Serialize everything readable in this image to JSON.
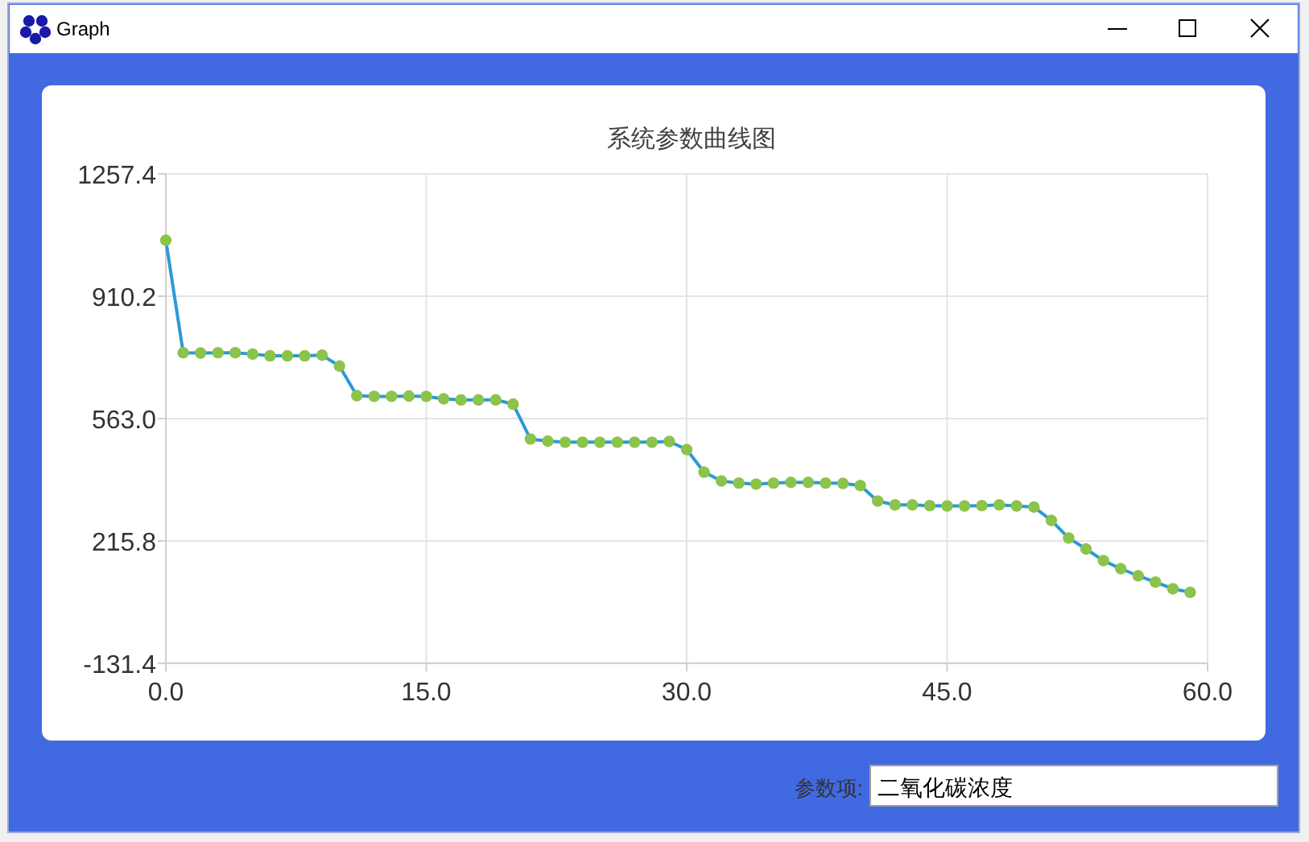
{
  "chart_data": {
    "type": "line",
    "title": "系统参数曲线图",
    "annotations": [
      "Graph",
      "参数项:",
      "二氧化碳浓度"
    ],
    "x": [
      0,
      1,
      2,
      3,
      4,
      5,
      6,
      7,
      8,
      9,
      10,
      11,
      12,
      13,
      14,
      15,
      16,
      17,
      18,
      19,
      20,
      21,
      22,
      23,
      24,
      25,
      26,
      27,
      28,
      29,
      30,
      31,
      32,
      33,
      34,
      35,
      36,
      37,
      38,
      39,
      40,
      41,
      42,
      43,
      44,
      45,
      46,
      47,
      48,
      49,
      50,
      51,
      52,
      53,
      54,
      55,
      56,
      57,
      58,
      59
    ],
    "series": [
      {
        "color": "#2b9ad6",
        "values": [
          1069,
          750,
          749,
          750,
          750,
          746,
          741,
          741,
          741,
          743,
          712,
          628,
          626,
          626,
          627,
          626,
          619,
          616,
          616,
          616,
          604,
          505,
          499,
          496,
          496,
          496,
          496,
          496,
          496,
          498,
          475,
          411,
          386,
          380,
          377,
          380,
          382,
          382,
          380,
          379,
          373,
          329,
          318,
          318,
          316,
          315,
          315,
          316,
          318,
          315,
          312,
          274,
          224,
          193,
          160,
          137,
          117,
          99,
          80,
          70
        ],
        "colors": [
          "#8cc34b",
          "#8cc34b",
          "#8cc34b",
          "#8cc34b",
          "#8cc34b",
          "#8cc34b",
          "#8cc34b",
          "#8cc34b",
          "#8cc34b",
          "#8cc34b",
          "#8cc34b",
          "#8cc34b",
          "#8cc34b",
          "#8cc34b",
          "#8cc34b",
          "#8cc34b",
          "#8cc34b",
          "#8cc34b",
          "#8cc34b",
          "#8cc34b",
          "#8cc34b",
          "#8cc34b",
          "#8cc34b",
          "#8cc34b",
          "#8cc34b",
          "#8cc34b",
          "#8cc34b",
          "#8cc34b",
          "#8cc34b",
          "#8cc34b",
          "#8cc34b",
          "#8cc34b",
          "#8cc34b",
          "#8cc34b",
          "#8cc34b",
          "#8cc34b",
          "#8cc34b",
          "#8cc34b",
          "#8cc34b",
          "#8cc34b",
          "#8cc34b",
          "#8cc34b",
          "#8cc34b",
          "#8cc34b",
          "#8cc34b",
          "#8cc34b",
          "#8cc34b",
          "#8cc34b",
          "#8cc34b",
          "#8cc34b",
          "#8cc34b",
          "#8cc34b",
          "#8cc34b",
          "#8cc34b",
          "#8cc34b",
          "#8cc34b",
          "#8cc34b",
          "#8cc34b",
          "#8cc34b",
          "#8cc34b"
        ]
      }
    ],
    "xlim": [
      0,
      60
    ],
    "ylim": [
      -131.4,
      1257.4
    ],
    "xticks": [
      {
        "value": 0,
        "label": "0.0"
      },
      {
        "value": 15,
        "label": "15.0"
      },
      {
        "value": 30,
        "label": "30.0"
      },
      {
        "value": 45,
        "label": "45.0"
      },
      {
        "value": 60,
        "label": "60.0"
      }
    ],
    "yticks": [
      -131.4,
      215.8,
      {
        "value": 563,
        "label": "563.0"
      },
      910.2,
      1257.4
    ],
    "grid": true,
    "marker": "circle"
  }
}
